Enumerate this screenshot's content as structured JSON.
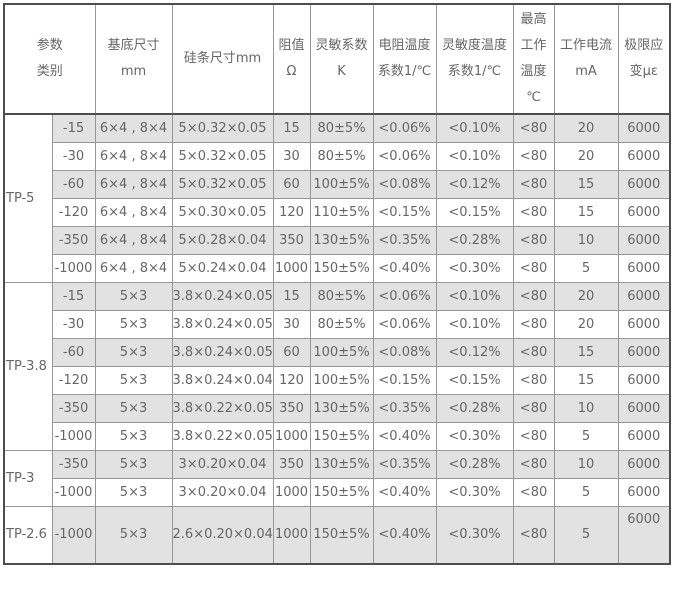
{
  "chart_data": {
    "type": "table",
    "title": "",
    "columns": [
      {
        "key": "group",
        "label": "参数类别",
        "header_lines": [
          "参数",
          "类别"
        ]
      },
      {
        "key": "type",
        "label": "",
        "header_lines": [],
        "merged_into_group_header": true
      },
      {
        "key": "base",
        "label": "基底尺寸mm",
        "header_lines": [
          "基底尺寸",
          "mm"
        ]
      },
      {
        "key": "strip",
        "label": "硅条尺寸mm",
        "header_lines": [
          "硅条尺寸mm"
        ]
      },
      {
        "key": "ohm",
        "label": "阻值Ω",
        "header_lines": [
          "阻值",
          "Ω"
        ]
      },
      {
        "key": "k",
        "label": "灵敏系数K",
        "header_lines": [
          "灵敏系数",
          "K"
        ]
      },
      {
        "key": "rtc",
        "label": "电阻温度系数1/℃",
        "header_lines": [
          "电阻温度",
          "系数1/℃"
        ]
      },
      {
        "key": "stc",
        "label": "灵敏度温度系数1/℃",
        "header_lines": [
          "灵敏度温度",
          "系数1/℃"
        ]
      },
      {
        "key": "temp",
        "label": "最高工作温度℃",
        "header_lines": [
          "最高",
          "工作",
          "温度",
          "℃"
        ]
      },
      {
        "key": "ma",
        "label": "工作电流mA",
        "header_lines": [
          "工作电流",
          "mA"
        ]
      },
      {
        "key": "strain",
        "label": "极限应变με",
        "header_lines": [
          "极限应",
          "变με"
        ]
      }
    ],
    "groups": [
      {
        "label": "TP-5",
        "rows": [
          {
            "type": "-15",
            "base": "6×4 , 8×4",
            "strip": "5×0.32×0.05",
            "ohm": "15",
            "k": "80±5%",
            "rtc": "<0.06%",
            "stc": "<0.10%",
            "temp": "<80",
            "ma": "20",
            "strain": "6000"
          },
          {
            "type": "-30",
            "base": "6×4 , 8×4",
            "strip": "5×0.32×0.05",
            "ohm": "30",
            "k": "80±5%",
            "rtc": "<0.06%",
            "stc": "<0.10%",
            "temp": "<80",
            "ma": "20",
            "strain": "6000"
          },
          {
            "type": "-60",
            "base": "6×4 , 8×4",
            "strip": "5×0.32×0.05",
            "ohm": "60",
            "k": "100±5%",
            "rtc": "<0.08%",
            "stc": "<0.12%",
            "temp": "<80",
            "ma": "15",
            "strain": "6000"
          },
          {
            "type": "-120",
            "base": "6×4 , 8×4",
            "strip": "5×0.30×0.05",
            "ohm": "120",
            "k": "110±5%",
            "rtc": "<0.15%",
            "stc": "<0.15%",
            "temp": "<80",
            "ma": "15",
            "strain": "6000"
          },
          {
            "type": "-350",
            "base": "6×4 , 8×4",
            "strip": "5×0.28×0.04",
            "ohm": "350",
            "k": "130±5%",
            "rtc": "<0.35%",
            "stc": "<0.28%",
            "temp": "<80",
            "ma": "10",
            "strain": "6000"
          },
          {
            "type": "-1000",
            "base": "6×4 , 8×4",
            "strip": "5×0.24×0.04",
            "ohm": "1000",
            "k": "150±5%",
            "rtc": "<0.40%",
            "stc": "<0.30%",
            "temp": "<80",
            "ma": "5",
            "strain": "6000"
          }
        ]
      },
      {
        "label": "TP-3.8",
        "rows": [
          {
            "type": "-15",
            "base": "5×3",
            "strip": "3.8×0.24×0.05",
            "ohm": "15",
            "k": "80±5%",
            "rtc": "<0.06%",
            "stc": "<0.10%",
            "temp": "<80",
            "ma": "20",
            "strain": "6000"
          },
          {
            "type": "-30",
            "base": "5×3",
            "strip": "3.8×0.24×0.05",
            "ohm": "30",
            "k": "80±5%",
            "rtc": "<0.06%",
            "stc": "<0.10%",
            "temp": "<80",
            "ma": "20",
            "strain": "6000"
          },
          {
            "type": "-60",
            "base": "5×3",
            "strip": "3.8×0.24×0.05",
            "ohm": "60",
            "k": "100±5%",
            "rtc": "<0.08%",
            "stc": "<0.12%",
            "temp": "<80",
            "ma": "15",
            "strain": "6000"
          },
          {
            "type": "-120",
            "base": "5×3",
            "strip": "3.8×0.24×0.04",
            "ohm": "120",
            "k": "100±5%",
            "rtc": "<0.15%",
            "stc": "<0.15%",
            "temp": "<80",
            "ma": "15",
            "strain": "6000"
          },
          {
            "type": "-350",
            "base": "5×3",
            "strip": "3.8×0.22×0.05",
            "ohm": "350",
            "k": "130±5%",
            "rtc": "<0.35%",
            "stc": "<0.28%",
            "temp": "<80",
            "ma": "10",
            "strain": "6000"
          },
          {
            "type": "-1000",
            "base": "5×3",
            "strip": "3.8×0.22×0.05",
            "ohm": "1000",
            "k": "150±5%",
            "rtc": "<0.40%",
            "stc": "<0.30%",
            "temp": "<80",
            "ma": "5",
            "strain": "6000"
          }
        ]
      },
      {
        "label": "TP-3",
        "rows": [
          {
            "type": "-350",
            "base": "5×3",
            "strip": "3×0.20×0.04",
            "ohm": "350",
            "k": "130±5%",
            "rtc": "<0.35%",
            "stc": "<0.28%",
            "temp": "<80",
            "ma": "10",
            "strain": "6000"
          },
          {
            "type": "-1000",
            "base": "5×3",
            "strip": "3×0.20×0.04",
            "ohm": "1000",
            "k": "150±5%",
            "rtc": "<0.40%",
            "stc": "<0.30%",
            "temp": "<80",
            "ma": "5",
            "strain": "6000"
          }
        ]
      },
      {
        "label": "TP-2.6",
        "rows": [
          {
            "type": "-1000",
            "base": "5×3",
            "strip": "2.6×0.20×0.04",
            "ohm": "1000",
            "k": "150±5%",
            "rtc": "<0.40%",
            "stc": "<0.30%",
            "temp": "<80",
            "ma": "5",
            "strain": "6000",
            "tall_row": true,
            "strain_align_top": true
          }
        ]
      }
    ],
    "layout_hints": {
      "stripe_color": "#e2e2e2",
      "text_color": "#666666",
      "outer_border_color": "#4d4d4d",
      "inner_border_color": "#979797",
      "striping": "alternating rows starting shaded; group label cells always white"
    }
  }
}
